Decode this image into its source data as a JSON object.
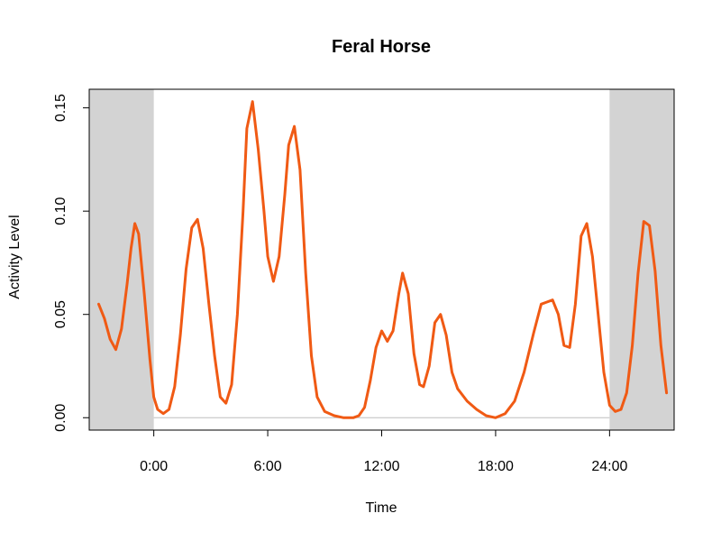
{
  "chart_data": {
    "type": "line",
    "title": "Feral Horse",
    "xlabel": "Time",
    "ylabel": "Activity Level",
    "xlim": [
      -3.4,
      27.4
    ],
    "ylim": [
      -0.006,
      0.159
    ],
    "x_ticks": [
      0,
      6,
      12,
      18,
      24
    ],
    "x_tick_labels": [
      "0:00",
      "6:00",
      "12:00",
      "18:00",
      "24:00"
    ],
    "y_ticks": [
      0.0,
      0.05,
      0.1,
      0.15
    ],
    "y_tick_labels": [
      "0.00",
      "0.05",
      "0.10",
      "0.15"
    ],
    "shaded_regions": [
      [
        -3.4,
        0
      ],
      [
        24,
        27.4
      ]
    ],
    "shade_color": "#d3d3d3",
    "baseline": 0,
    "baseline_color": "#bebebe",
    "grid": false,
    "series": [
      {
        "color": "#f05a14",
        "x": [
          -2.9,
          -2.6,
          -2.3,
          -2.0,
          -1.7,
          -1.4,
          -1.2,
          -1.0,
          -0.8,
          -0.5,
          -0.2,
          0.0,
          0.2,
          0.5,
          0.8,
          1.1,
          1.4,
          1.7,
          2.0,
          2.3,
          2.6,
          2.9,
          3.2,
          3.5,
          3.8,
          4.1,
          4.4,
          4.7,
          4.9,
          5.2,
          5.5,
          5.8,
          6.0,
          6.3,
          6.6,
          6.9,
          7.1,
          7.4,
          7.7,
          8.0,
          8.3,
          8.6,
          9.0,
          9.5,
          10.0,
          10.5,
          10.8,
          11.1,
          11.4,
          11.7,
          12.0,
          12.3,
          12.6,
          12.9,
          13.1,
          13.4,
          13.7,
          14.0,
          14.2,
          14.5,
          14.8,
          15.1,
          15.4,
          15.7,
          16.0,
          16.5,
          17.0,
          17.5,
          18.0,
          18.5,
          19.0,
          19.5,
          20.0,
          20.4,
          20.7,
          21.0,
          21.3,
          21.6,
          21.9,
          22.2,
          22.5,
          22.8,
          23.1,
          23.4,
          23.7,
          24.0,
          24.3,
          24.6,
          24.9,
          25.2,
          25.5,
          25.8,
          26.1,
          26.4,
          26.7,
          27.0
        ],
        "y": [
          0.055,
          0.048,
          0.038,
          0.033,
          0.043,
          0.065,
          0.082,
          0.094,
          0.089,
          0.06,
          0.028,
          0.01,
          0.004,
          0.002,
          0.004,
          0.015,
          0.04,
          0.072,
          0.092,
          0.096,
          0.082,
          0.055,
          0.03,
          0.01,
          0.007,
          0.016,
          0.05,
          0.1,
          0.14,
          0.153,
          0.13,
          0.1,
          0.078,
          0.066,
          0.078,
          0.108,
          0.132,
          0.141,
          0.12,
          0.07,
          0.03,
          0.01,
          0.003,
          0.001,
          0.0,
          0.0,
          0.001,
          0.005,
          0.018,
          0.034,
          0.042,
          0.037,
          0.042,
          0.06,
          0.07,
          0.06,
          0.031,
          0.016,
          0.015,
          0.025,
          0.046,
          0.05,
          0.04,
          0.022,
          0.014,
          0.008,
          0.004,
          0.001,
          0.0,
          0.002,
          0.008,
          0.022,
          0.041,
          0.055,
          0.056,
          0.057,
          0.05,
          0.035,
          0.034,
          0.055,
          0.088,
          0.094,
          0.078,
          0.05,
          0.022,
          0.006,
          0.003,
          0.004,
          0.012,
          0.035,
          0.07,
          0.095,
          0.093,
          0.071,
          0.035,
          0.012
        ]
      }
    ]
  }
}
